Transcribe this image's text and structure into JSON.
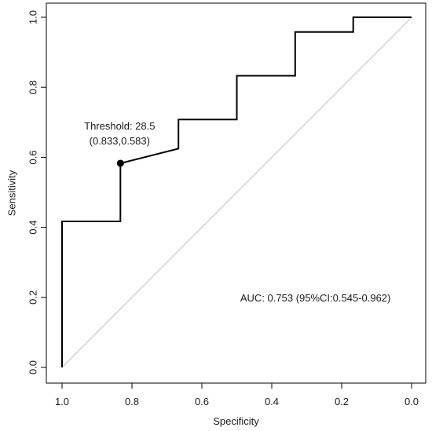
{
  "chart_data": {
    "type": "line",
    "title": "",
    "xlabel": "Specificity",
    "ylabel": "Sensitivity",
    "xlim": [
      1.0,
      0.0
    ],
    "ylim": [
      0.0,
      1.0
    ],
    "x_reversed": true,
    "grid": false,
    "legend": "none",
    "x_ticks": [
      "1.0",
      "0.8",
      "0.6",
      "0.4",
      "0.2",
      "0.0"
    ],
    "y_ticks": [
      "0.0",
      "0.2",
      "0.4",
      "0.6",
      "0.8",
      "1.0"
    ],
    "series": [
      {
        "color": "#000000",
        "x": [
          1.0,
          1.0,
          0.833,
          0.833,
          0.667,
          0.667,
          0.5,
          0.5,
          0.333,
          0.333,
          0.167,
          0.167,
          0.0
        ],
        "y": [
          0.0,
          0.417,
          0.417,
          0.583,
          0.625,
          0.708,
          0.708,
          0.833,
          0.833,
          0.958,
          0.958,
          1.0,
          1.0
        ]
      }
    ],
    "reference_line": {
      "x": [
        1.0,
        0.0
      ],
      "y": [
        0.0,
        1.0
      ],
      "color": "#bfbfbf"
    },
    "threshold_point": {
      "x": 0.833,
      "y": 0.583,
      "label_line1": "Threshold: 28.5",
      "label_line2": "(0.833,0.583)"
    },
    "auc_annotation": "AUC: 0.753 (95%CI:0.545-0.962)"
  }
}
